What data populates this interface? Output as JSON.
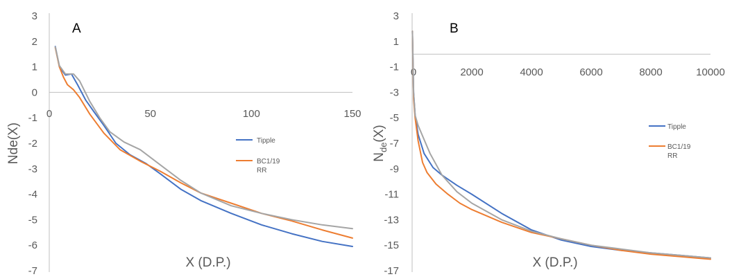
{
  "chart_data": [
    {
      "panel_label": "A",
      "type": "line",
      "xlabel": "X (D.P.)",
      "ylabel": "Nde(X)",
      "ylabel_sub": "",
      "ylabel_suffix": "",
      "xlim": [
        0,
        150
      ],
      "ylim": [
        -7,
        3
      ],
      "x_ticks": [
        0,
        50,
        100,
        150
      ],
      "y_ticks": [
        3,
        2,
        1,
        0,
        -1,
        -2,
        -3,
        -4,
        -5,
        -6,
        -7
      ],
      "grid": false,
      "legend_position": "right",
      "series": [
        {
          "name": "Tipple",
          "color": "#4472c4",
          "points": [
            [
              3,
              1.8
            ],
            [
              5,
              1.0
            ],
            [
              8,
              0.68
            ],
            [
              11,
              0.72
            ],
            [
              14,
              0.3
            ],
            [
              18,
              -0.3
            ],
            [
              22,
              -0.75
            ],
            [
              27,
              -1.3
            ],
            [
              33,
              -2.0
            ],
            [
              40,
              -2.45
            ],
            [
              48,
              -2.8
            ],
            [
              55,
              -3.2
            ],
            [
              65,
              -3.8
            ],
            [
              75,
              -4.25
            ],
            [
              90,
              -4.75
            ],
            [
              105,
              -5.2
            ],
            [
              120,
              -5.55
            ],
            [
              135,
              -5.85
            ],
            [
              150,
              -6.05
            ]
          ]
        },
        {
          "name": "BC1/19 RR",
          "color": "#ed7d31",
          "points": [
            [
              3,
              1.75
            ],
            [
              5,
              1.0
            ],
            [
              7,
              0.6
            ],
            [
              9,
              0.3
            ],
            [
              12,
              0.1
            ],
            [
              15,
              -0.2
            ],
            [
              20,
              -0.85
            ],
            [
              27,
              -1.6
            ],
            [
              35,
              -2.25
            ],
            [
              45,
              -2.7
            ],
            [
              55,
              -3.1
            ],
            [
              65,
              -3.55
            ],
            [
              75,
              -3.95
            ],
            [
              90,
              -4.35
            ],
            [
              105,
              -4.75
            ],
            [
              120,
              -5.05
            ],
            [
              135,
              -5.4
            ],
            [
              150,
              -5.72
            ]
          ]
        },
        {
          "name": "",
          "color": "#a5a5a5",
          "points": [
            [
              3,
              1.78
            ],
            [
              5,
              1.05
            ],
            [
              8,
              0.72
            ],
            [
              12,
              0.72
            ],
            [
              15,
              0.45
            ],
            [
              20,
              -0.35
            ],
            [
              25,
              -1.0
            ],
            [
              30,
              -1.55
            ],
            [
              37,
              -1.95
            ],
            [
              45,
              -2.25
            ],
            [
              55,
              -2.85
            ],
            [
              65,
              -3.45
            ],
            [
              75,
              -3.95
            ],
            [
              90,
              -4.45
            ],
            [
              105,
              -4.75
            ],
            [
              120,
              -5.0
            ],
            [
              135,
              -5.2
            ],
            [
              150,
              -5.35
            ]
          ]
        }
      ]
    },
    {
      "panel_label": "B",
      "type": "line",
      "xlabel": "X (D.P.)",
      "ylabel": "N",
      "ylabel_sub": "de",
      "ylabel_suffix": "(X)",
      "xlim": [
        0,
        10000
      ],
      "ylim": [
        -17,
        3
      ],
      "x_ticks": [
        2000,
        4000,
        6000,
        8000,
        10000
      ],
      "x_tick_zero": "0",
      "y_ticks": [
        3,
        1,
        -1,
        -3,
        -5,
        -7,
        -9,
        -11,
        -13,
        -15,
        -17
      ],
      "grid": false,
      "legend_position": "right",
      "series": [
        {
          "name": "Tipple",
          "color": "#4472c4",
          "points": [
            [
              10,
              1.8
            ],
            [
              50,
              -3.0
            ],
            [
              100,
              -4.8
            ],
            [
              200,
              -6.3
            ],
            [
              400,
              -7.8
            ],
            [
              700,
              -8.9
            ],
            [
              1000,
              -9.5
            ],
            [
              1500,
              -10.3
            ],
            [
              2000,
              -11.0
            ],
            [
              3000,
              -12.5
            ],
            [
              4000,
              -13.8
            ],
            [
              5000,
              -14.6
            ],
            [
              6000,
              -15.1
            ],
            [
              7000,
              -15.4
            ],
            [
              8000,
              -15.6
            ],
            [
              9000,
              -15.8
            ],
            [
              10000,
              -16.0
            ]
          ]
        },
        {
          "name": "BC1/19 RR",
          "color": "#ed7d31",
          "points": [
            [
              10,
              1.8
            ],
            [
              50,
              -3.5
            ],
            [
              100,
              -5.0
            ],
            [
              200,
              -6.8
            ],
            [
              350,
              -8.5
            ],
            [
              500,
              -9.3
            ],
            [
              800,
              -10.2
            ],
            [
              1200,
              -11.0
            ],
            [
              1600,
              -11.7
            ],
            [
              2000,
              -12.2
            ],
            [
              3000,
              -13.2
            ],
            [
              4000,
              -14.0
            ],
            [
              5000,
              -14.5
            ],
            [
              6000,
              -15.0
            ],
            [
              7000,
              -15.4
            ],
            [
              8000,
              -15.7
            ],
            [
              9000,
              -15.9
            ],
            [
              10000,
              -16.1
            ]
          ]
        },
        {
          "name": "",
          "color": "#a5a5a5",
          "points": [
            [
              10,
              1.8
            ],
            [
              50,
              -3.0
            ],
            [
              100,
              -4.8
            ],
            [
              200,
              -5.6
            ],
            [
              400,
              -6.7
            ],
            [
              600,
              -7.8
            ],
            [
              1000,
              -9.5
            ],
            [
              1500,
              -10.8
            ],
            [
              2000,
              -11.7
            ],
            [
              3000,
              -13.0
            ],
            [
              4000,
              -13.9
            ],
            [
              5000,
              -14.5
            ],
            [
              6000,
              -15.0
            ],
            [
              7000,
              -15.3
            ],
            [
              8000,
              -15.6
            ],
            [
              9000,
              -15.8
            ],
            [
              10000,
              -16.0
            ]
          ]
        }
      ]
    }
  ]
}
